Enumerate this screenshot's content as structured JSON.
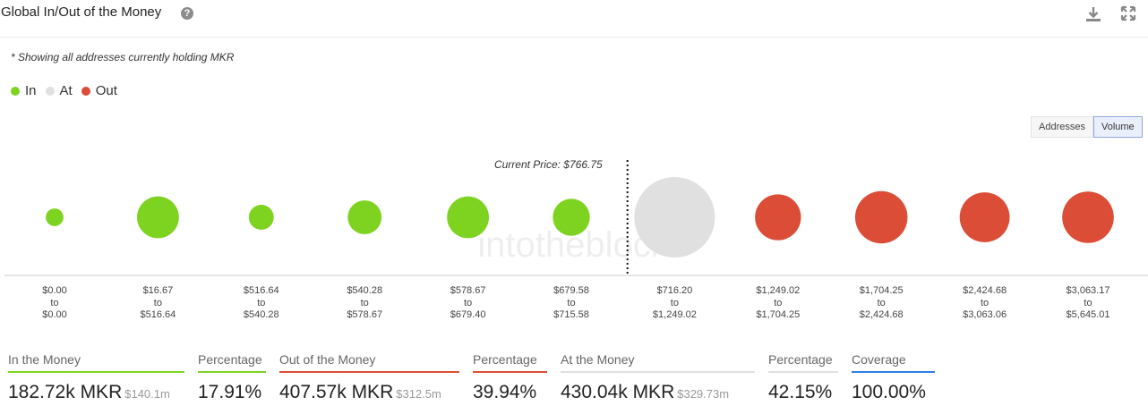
{
  "header": {
    "title": "Global In/Out of the Money",
    "help_icon": "question-circle-icon",
    "download_icon": "download-icon",
    "expand_icon": "expand-icon"
  },
  "note": "* Showing all addresses currently holding MKR",
  "legend": [
    {
      "label": "In",
      "color": "#7ed321"
    },
    {
      "label": "At",
      "color": "#e0e0e0"
    },
    {
      "label": "Out",
      "color": "#db4d36"
    }
  ],
  "toggle": {
    "addresses": "Addresses",
    "volume": "Volume",
    "selected": "Volume"
  },
  "chart_data": {
    "type": "scatter",
    "current_price_label": "Current Price: $766.75",
    "separator_word": "to",
    "watermark": "intotheblock",
    "bubbles": [
      {
        "from": "$0.00",
        "to": "$0.00",
        "status": "in",
        "relative_size": 0.22
      },
      {
        "from": "$16.67",
        "to": "$516.64",
        "status": "in",
        "relative_size": 0.52
      },
      {
        "from": "$516.64",
        "to": "$540.28",
        "status": "in",
        "relative_size": 0.31
      },
      {
        "from": "$540.28",
        "to": "$578.67",
        "status": "in",
        "relative_size": 0.42
      },
      {
        "from": "$578.67",
        "to": "$679.40",
        "status": "in",
        "relative_size": 0.52
      },
      {
        "from": "$679.58",
        "to": "$715.58",
        "status": "in",
        "relative_size": 0.46
      },
      {
        "from": "$716.20",
        "to": "$1,249.02",
        "status": "at",
        "relative_size": 1.0
      },
      {
        "from": "$1,249.02",
        "to": "$1,704.25",
        "status": "out",
        "relative_size": 0.57
      },
      {
        "from": "$1,704.25",
        "to": "$2,424.68",
        "status": "out",
        "relative_size": 0.65
      },
      {
        "from": "$2,424.68",
        "to": "$3,063.06",
        "status": "out",
        "relative_size": 0.62
      },
      {
        "from": "$3,063.17",
        "to": "$5,645.01",
        "status": "out",
        "relative_size": 0.64
      }
    ]
  },
  "stats": [
    {
      "label": "In the Money",
      "value": "182.72k MKR",
      "sub": "$140.1m",
      "color": "#7ed321"
    },
    {
      "label": "Percentage",
      "value": "17.91%",
      "sub": "",
      "color": "#7ed321"
    },
    {
      "label": "Out of the Money",
      "value": "407.57k MKR",
      "sub": "$312.5m",
      "color": "#db4d36"
    },
    {
      "label": "Percentage",
      "value": "39.94%",
      "sub": "",
      "color": "#db4d36"
    },
    {
      "label": "At the Money",
      "value": "430.04k MKR",
      "sub": "$329.73m",
      "color": "#e0e0e0"
    },
    {
      "label": "Percentage",
      "value": "42.15%",
      "sub": "",
      "color": "#e0e0e0"
    },
    {
      "label": "Coverage",
      "value": "100.00%",
      "sub": "",
      "color": "#2f7ee8"
    }
  ]
}
